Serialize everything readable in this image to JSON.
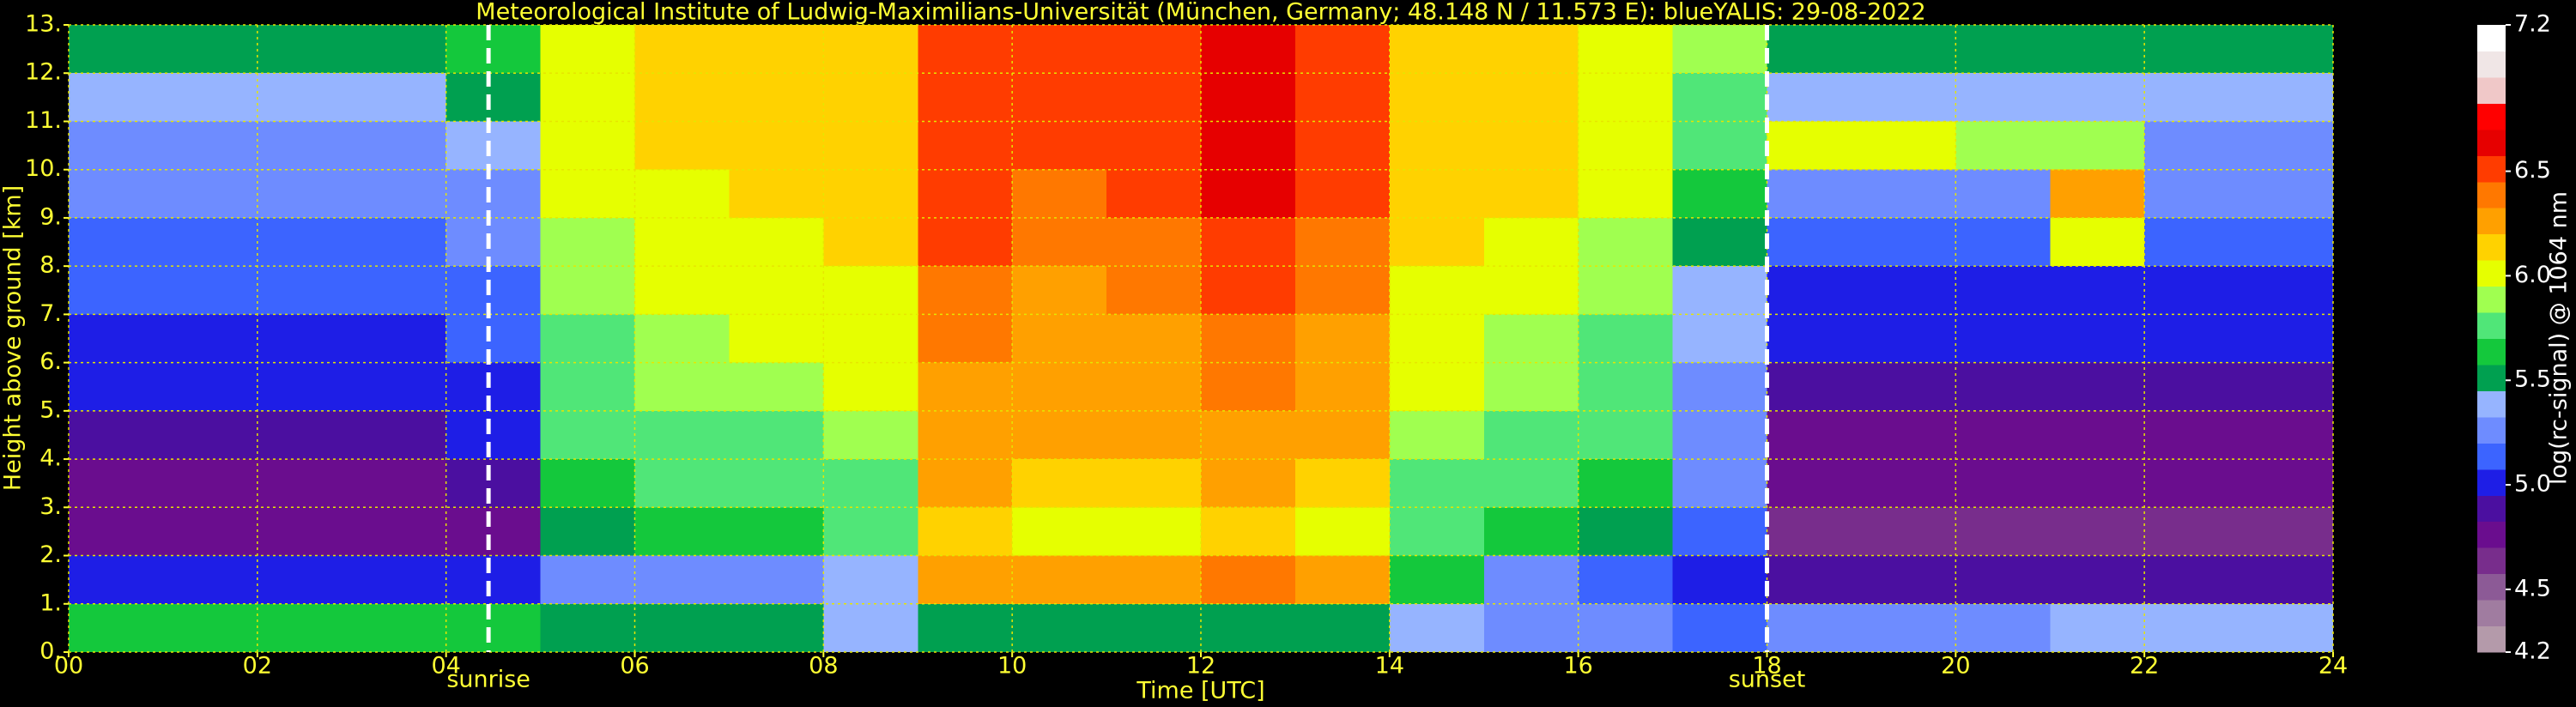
{
  "chart_data": {
    "type": "heatmap",
    "title": "Meteorological Institute of Ludwig-Maximilians-Universität (München, Germany; 48.148 N / 11.573 E):    blueYALIS: 29-08-2022",
    "x_label": "Time [UTC]",
    "y_label": "Height above ground [km]",
    "colorbar_label": "log(rc-signal) @ 1064 nm",
    "xlim": [
      0,
      24
    ],
    "ylim": [
      0,
      13
    ],
    "xticks": [
      {
        "value": 0,
        "label": "00"
      },
      {
        "value": 2,
        "label": "02"
      },
      {
        "value": 4,
        "label": "04"
      },
      {
        "value": 6,
        "label": "06"
      },
      {
        "value": 8,
        "label": "08"
      },
      10,
      12,
      14,
      16,
      18,
      20,
      22,
      24
    ],
    "yticks": [
      {
        "value": 0,
        "label": "0."
      },
      {
        "value": 1,
        "label": "1."
      },
      {
        "value": 2,
        "label": "2."
      },
      {
        "value": 3,
        "label": "3."
      },
      {
        "value": 4,
        "label": "4."
      },
      {
        "value": 5,
        "label": "5."
      },
      {
        "value": 6,
        "label": "6."
      },
      {
        "value": 7,
        "label": "7."
      },
      {
        "value": 8,
        "label": "8."
      },
      {
        "value": 9,
        "label": "9."
      },
      {
        "value": 10,
        "label": "10."
      },
      {
        "value": 11,
        "label": "11."
      },
      {
        "value": 12,
        "label": "12."
      },
      {
        "value": 13,
        "label": "13."
      }
    ],
    "grid": true,
    "clim": [
      4.2,
      7.2
    ],
    "cticks": [
      4.2,
      4.5,
      {
        "value": 5,
        "label": "5.0"
      },
      5.5,
      {
        "value": 6,
        "label": "6.0"
      },
      6.5,
      7.2
    ],
    "colors": [
      "#b49aaa",
      "#a07ca0",
      "#8c5a96",
      "#782d8c",
      "#6a0d8e",
      "#4b0fa0",
      "#1e1ee6",
      "#3c64ff",
      "#6e8cff",
      "#96b4ff",
      "#00a050",
      "#14c83c",
      "#50e678",
      "#a0ff50",
      "#e6ff00",
      "#ffd200",
      "#ffa000",
      "#ff7800",
      "#ff3c00",
      "#e60000",
      "#ff0000",
      "#f0c8c8",
      "#f0e6e6",
      "#ffffff"
    ],
    "xbins": [
      0,
      1,
      2,
      3,
      4,
      5,
      6,
      7,
      8,
      9,
      10,
      11,
      12,
      13,
      14,
      15,
      16,
      17,
      18,
      19,
      20,
      21,
      22,
      23,
      24
    ],
    "ybins": [
      0,
      1,
      2,
      3,
      4,
      5,
      6,
      7,
      8,
      9,
      10,
      11,
      12,
      13
    ],
    "z": [
      [
        5.6,
        5.6,
        5.6,
        5.6,
        5.6,
        5.5,
        5.5,
        5.5,
        5.4,
        5.5,
        5.5,
        5.5,
        5.5,
        5.5,
        5.4,
        5.3,
        5.2,
        5.1,
        5.2,
        5.3,
        5.3,
        5.4,
        5.4,
        5.4
      ],
      [
        5.0,
        5.0,
        5.0,
        5.0,
        5.0,
        5.2,
        5.3,
        5.3,
        5.4,
        6.2,
        6.3,
        6.3,
        6.4,
        6.3,
        5.6,
        5.2,
        5.1,
        5.0,
        4.9,
        4.9,
        4.9,
        4.9,
        4.9,
        4.9
      ],
      [
        4.7,
        4.7,
        4.7,
        4.7,
        4.8,
        5.5,
        5.6,
        5.6,
        5.7,
        6.1,
        6.0,
        6.0,
        6.1,
        6.0,
        5.7,
        5.6,
        5.5,
        5.1,
        4.6,
        4.6,
        4.6,
        4.6,
        4.6,
        4.6
      ],
      [
        4.8,
        4.8,
        4.8,
        4.8,
        4.9,
        5.6,
        5.7,
        5.7,
        5.8,
        6.2,
        6.1,
        6.1,
        6.2,
        6.1,
        5.8,
        5.7,
        5.6,
        5.2,
        4.7,
        4.7,
        4.7,
        4.7,
        4.7,
        4.7
      ],
      [
        4.9,
        4.9,
        4.9,
        4.9,
        5.0,
        5.7,
        5.8,
        5.8,
        5.9,
        6.3,
        6.2,
        6.2,
        6.3,
        6.2,
        5.9,
        5.8,
        5.7,
        5.3,
        4.8,
        4.8,
        4.8,
        4.8,
        4.8,
        4.8
      ],
      [
        5.0,
        5.0,
        5.0,
        5.0,
        5.0,
        5.8,
        5.9,
        5.9,
        6.0,
        6.3,
        6.3,
        6.3,
        6.4,
        6.3,
        6.0,
        5.9,
        5.8,
        5.3,
        4.9,
        4.9,
        4.9,
        4.9,
        4.9,
        4.9
      ],
      [
        5.0,
        5.0,
        5.0,
        5.0,
        5.1,
        5.8,
        5.9,
        6.0,
        6.0,
        6.4,
        6.3,
        6.3,
        6.4,
        6.3,
        6.0,
        5.9,
        5.8,
        5.4,
        5.0,
        5.0,
        5.0,
        5.0,
        5.0,
        5.0
      ],
      [
        5.1,
        5.1,
        5.1,
        5.1,
        5.1,
        5.9,
        6.0,
        6.0,
        6.0,
        6.4,
        6.3,
        6.4,
        6.5,
        6.4,
        6.0,
        6.0,
        5.9,
        5.4,
        5.0,
        5.0,
        5.0,
        5.0,
        5.0,
        5.0
      ],
      [
        5.1,
        5.1,
        5.1,
        5.1,
        5.2,
        5.9,
        6.0,
        6.0,
        6.1,
        6.5,
        6.4,
        6.4,
        6.5,
        6.4,
        6.1,
        6.0,
        5.9,
        5.5,
        5.1,
        5.1,
        5.1,
        6.0,
        5.1,
        5.1
      ],
      [
        5.2,
        5.2,
        5.2,
        5.2,
        5.3,
        6.0,
        6.0,
        6.1,
        6.1,
        6.5,
        6.4,
        6.5,
        6.6,
        6.5,
        6.1,
        6.1,
        6.0,
        5.6,
        5.2,
        5.2,
        5.2,
        6.2,
        5.2,
        5.2
      ],
      [
        5.3,
        5.3,
        5.3,
        5.3,
        5.4,
        6.0,
        6.1,
        6.1,
        6.1,
        6.5,
        6.5,
        6.5,
        6.6,
        6.5,
        6.1,
        6.1,
        6.0,
        5.7,
        6.0,
        6.0,
        5.9,
        5.9,
        5.3,
        5.3
      ],
      [
        5.4,
        5.4,
        5.4,
        5.4,
        5.5,
        6.0,
        6.1,
        6.1,
        6.1,
        6.5,
        6.5,
        6.5,
        6.6,
        6.5,
        6.1,
        6.1,
        6.0,
        5.8,
        5.4,
        5.4,
        5.4,
        5.4,
        5.4,
        5.4
      ],
      [
        5.5,
        5.5,
        5.5,
        5.5,
        5.6,
        6.0,
        6.1,
        6.1,
        6.1,
        6.5,
        6.5,
        6.5,
        6.6,
        6.5,
        6.1,
        6.1,
        6.0,
        5.9,
        5.5,
        5.5,
        5.5,
        5.5,
        5.5,
        5.5
      ]
    ],
    "annotations": [
      {
        "label": "sunrise",
        "x": 4.45
      },
      {
        "label": "sunset",
        "x": 18
      }
    ]
  }
}
